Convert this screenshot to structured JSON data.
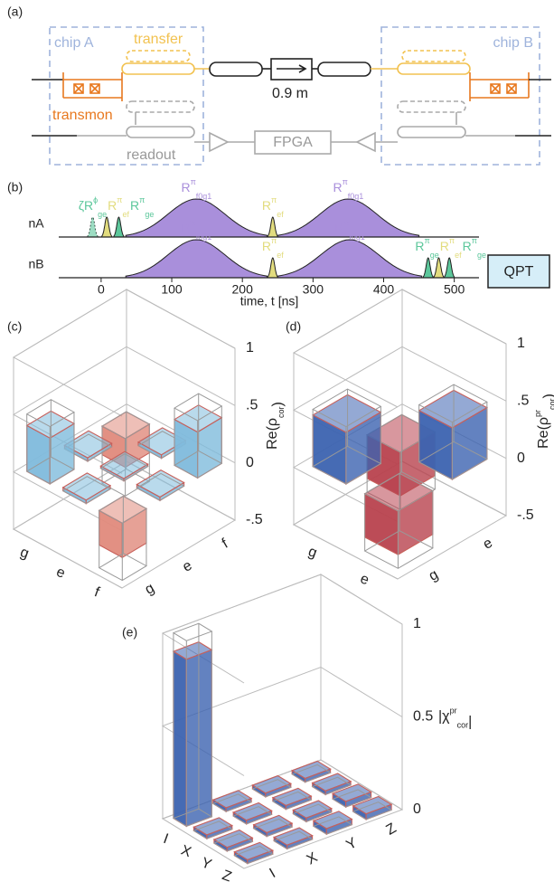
{
  "panel_a": {
    "label": "(a)",
    "chip_a": "chip A",
    "chip_b": "chip B",
    "transfer": "transfer",
    "transmon": "transmon",
    "readout": "readout",
    "cable_length": "0.9 m",
    "fpga": "FPGA"
  },
  "panel_b": {
    "label": "(b)",
    "xlim": [
      -60,
      535
    ],
    "xticks": [
      0,
      100,
      200,
      300,
      400,
      500
    ],
    "x_label": "time, t [ns]",
    "qpt": "QPT",
    "channels": [
      {
        "name": "nA",
        "pulses": [
          {
            "t": -12,
            "duration": 14,
            "color": "#5cc79b",
            "dashed": true,
            "label": {
              "pre": "ζ",
              "base": "R",
              "sub": "ge",
              "sup": "ϕ"
            }
          },
          {
            "t": 8,
            "duration": 14,
            "color": "#e2dc7e",
            "label": {
              "base": "R",
              "sub": "ef",
              "sup": "π"
            }
          },
          {
            "t": 25,
            "duration": 14,
            "color": "#5cc79b",
            "label": {
              "base": "R",
              "sub": "ge",
              "sup": "π"
            }
          },
          {
            "t": 135,
            "duration": 200,
            "color": "#a98fdb",
            "label": {
              "base": "R",
              "sub": "f0g1",
              "sup": "π"
            }
          },
          {
            "t": 243,
            "duration": 14,
            "color": "#e2dc7e",
            "label": {
              "base": "R",
              "sub": "ef",
              "sup": "π"
            }
          },
          {
            "t": 350,
            "duration": 200,
            "color": "#a98fdb",
            "label": {
              "base": "R",
              "sub": "f0g1",
              "sup": "π"
            }
          }
        ]
      },
      {
        "name": "nB",
        "pulses": [
          {
            "t": 135,
            "duration": 200,
            "color": "#a98fdb",
            "label": {
              "base": "R",
              "sub": "f0g1",
              "sup": "π"
            }
          },
          {
            "t": 243,
            "duration": 14,
            "color": "#e2dc7e",
            "label": {
              "base": "R",
              "sub": "ef",
              "sup": "π"
            }
          },
          {
            "t": 352,
            "duration": 204,
            "color": "#a98fdb",
            "label": {
              "base": "R",
              "sub": "f0g1",
              "sup": "π"
            }
          },
          {
            "t": 463,
            "duration": 14,
            "color": "#5cc79b",
            "label": {
              "base": "R",
              "sub": "ge",
              "sup": "π"
            }
          },
          {
            "t": 478,
            "duration": 14,
            "color": "#e2dc7e",
            "label": {
              "base": "R",
              "sub": "ef",
              "sup": "π"
            }
          },
          {
            "t": 493,
            "duration": 14,
            "color": "#5cc79b",
            "label": {
              "base": "R",
              "sub": "ge",
              "sup": "π"
            }
          }
        ]
      }
    ]
  },
  "panel_c": {
    "label": "(c)",
    "z_label": {
      "base": "Re(ρ",
      "sub": "cor",
      "suffix": ")"
    },
    "zlim": [
      -0.5,
      1
    ],
    "zticks": [
      {
        "value": -0.5,
        "label": "-.5"
      },
      0,
      {
        "value": 0.5,
        "label": ".5"
      },
      1
    ],
    "rows": [
      "g",
      "e",
      "f"
    ],
    "cols": [
      "g",
      "e",
      "f"
    ],
    "values": [
      [
        0.4,
        0.03,
        -0.25
      ],
      [
        0.03,
        0.02,
        0.03
      ],
      [
        -0.3,
        0.03,
        0.4
      ]
    ],
    "ideal": [
      [
        0.5,
        0,
        -0.5
      ],
      [
        0,
        0,
        0
      ],
      [
        -0.5,
        0,
        0.5
      ]
    ],
    "color_pos": "#7fbbdc",
    "color_neg": "#e08a7c"
  },
  "panel_d": {
    "label": "(d)",
    "z_label": {
      "base": "Re(ρ",
      "sub": "cor",
      "sup": "pr",
      "suffix": ")"
    },
    "zlim": [
      -0.5,
      1
    ],
    "zticks": [
      {
        "value": -0.5,
        "label": "-.5"
      },
      0,
      {
        "value": 0.5,
        "label": ".5"
      },
      1
    ],
    "rows": [
      "g",
      "e"
    ],
    "cols": [
      "g",
      "e"
    ],
    "values": [
      [
        0.45,
        -0.38
      ],
      [
        -0.38,
        0.45
      ]
    ],
    "ideal": [
      [
        0.5,
        -0.5
      ],
      [
        -0.5,
        0.5
      ]
    ],
    "color_pos": "#3c63b0",
    "color_neg": "#b8424e"
  },
  "panel_e": {
    "label": "(e)",
    "z_label": {
      "base": "|χ",
      "sub": "cor",
      "sup": "pr",
      "suffix": "|"
    },
    "zlim": [
      0,
      1
    ],
    "zticks": [
      0,
      0.5,
      1
    ],
    "rows": [
      "I",
      "X",
      "Y",
      "Z"
    ],
    "cols": [
      "I",
      "X",
      "Y",
      "Z"
    ],
    "values": [
      [
        0.9,
        0.02,
        0.02,
        0.02
      ],
      [
        0.02,
        0.02,
        0.02,
        0.02
      ],
      [
        0.02,
        0.02,
        0.02,
        0.03
      ],
      [
        0.02,
        0.02,
        0.03,
        0.03
      ]
    ],
    "ideal": [
      [
        1,
        0,
        0,
        0
      ],
      [
        0,
        0,
        0,
        0
      ],
      [
        0,
        0,
        0,
        0
      ],
      [
        0,
        0,
        0,
        0
      ]
    ],
    "color_pos": "#3c63b0",
    "color_neg": "#b8424e"
  }
}
